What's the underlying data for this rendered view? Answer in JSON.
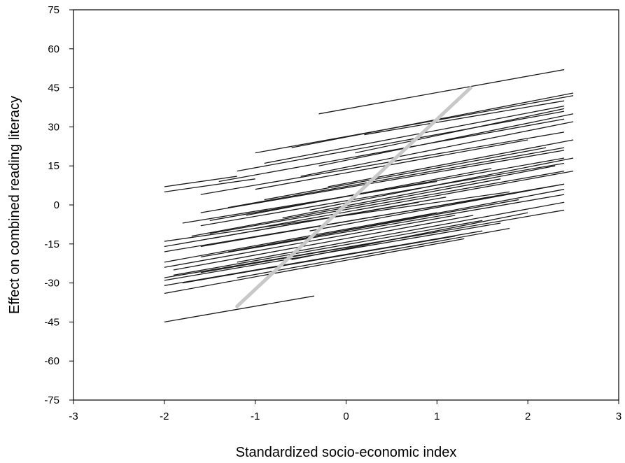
{
  "chart_data": {
    "type": "line",
    "title": "",
    "xlabel": "Standardized socio-economic index",
    "ylabel": "Effect on combined reading literacy",
    "xlim": [
      -3,
      3
    ],
    "ylim": [
      -75,
      75
    ],
    "x_ticks": [
      -3,
      -2,
      -1,
      0,
      1,
      2,
      3
    ],
    "y_ticks": [
      -75,
      -60,
      -45,
      -30,
      -15,
      0,
      15,
      30,
      45,
      60,
      75
    ],
    "x_tick_labels": [
      "-3",
      "-2",
      "-1",
      "0",
      "1",
      "2",
      "3"
    ],
    "y_tick_labels": [
      "-75",
      "-60",
      "-45",
      "-30",
      "-15",
      "0",
      "15",
      "30",
      "45",
      "60",
      "75"
    ],
    "grid": false,
    "series": [
      {
        "group": "school-level regression lines",
        "color": "#1a1a1a",
        "lines": [
          {
            "x": [
              -0.3,
              2.4
            ],
            "y": [
              35,
              52
            ]
          },
          {
            "x": [
              -2.0,
              -0.35
            ],
            "y": [
              -45,
              -35
            ]
          },
          {
            "x": [
              -2.0,
              -1.2
            ],
            "y": [
              7,
              11
            ]
          },
          {
            "x": [
              -2.0,
              -1.0
            ],
            "y": [
              5,
              10
            ]
          },
          {
            "x": [
              -2.0,
              1.8
            ],
            "y": [
              -14,
              5
            ]
          },
          {
            "x": [
              -2.0,
              1.5
            ],
            "y": [
              -31,
              -10
            ]
          },
          {
            "x": [
              -2.0,
              1.3
            ],
            "y": [
              -34,
              -13
            ]
          },
          {
            "x": [
              -2.0,
              1.7
            ],
            "y": [
              -29,
              -7
            ]
          },
          {
            "x": [
              -2.0,
              1.2
            ],
            "y": [
              -24,
              -4
            ]
          },
          {
            "x": [
              -2.0,
              1.6
            ],
            "y": [
              -18,
              3
            ]
          },
          {
            "x": [
              -2.0,
              1.0
            ],
            "y": [
              -22,
              -3
            ]
          },
          {
            "x": [
              -1.9,
              1.5
            ],
            "y": [
              -27,
              -6
            ]
          },
          {
            "x": [
              -1.6,
              2.4
            ],
            "y": [
              -26,
              -2
            ]
          },
          {
            "x": [
              -1.6,
              2.4
            ],
            "y": [
              -3,
              21
            ]
          },
          {
            "x": [
              -1.6,
              2.4
            ],
            "y": [
              -8,
              16
            ]
          },
          {
            "x": [
              -1.6,
              2.4
            ],
            "y": [
              4,
              28
            ]
          },
          {
            "x": [
              -1.6,
              2.4
            ],
            "y": [
              -16,
              8
            ]
          },
          {
            "x": [
              -1.6,
              2.4
            ],
            "y": [
              -20,
              4
            ]
          },
          {
            "x": [
              -1.5,
              2.4
            ],
            "y": [
              -11,
              13
            ]
          },
          {
            "x": [
              -1.5,
              2.4
            ],
            "y": [
              -6,
              18
            ]
          },
          {
            "x": [
              -1.4,
              2.4
            ],
            "y": [
              9,
              33
            ]
          },
          {
            "x": [
              -1.3,
              2.4
            ],
            "y": [
              -1,
              22
            ]
          },
          {
            "x": [
              -1.2,
              2.4
            ],
            "y": [
              13,
              36
            ]
          },
          {
            "x": [
              -1.2,
              2.4
            ],
            "y": [
              -22,
              1
            ]
          },
          {
            "x": [
              -1.0,
              2.5
            ],
            "y": [
              20,
              42
            ]
          },
          {
            "x": [
              -1.0,
              2.5
            ],
            "y": [
              -9,
              13
            ]
          },
          {
            "x": [
              -0.9,
              2.4
            ],
            "y": [
              16,
              38
            ]
          },
          {
            "x": [
              -0.8,
              2.4
            ],
            "y": [
              -15,
              6
            ]
          },
          {
            "x": [
              -0.6,
              2.5
            ],
            "y": [
              22,
              43
            ]
          },
          {
            "x": [
              -0.5,
              2.5
            ],
            "y": [
              11,
              32
            ]
          },
          {
            "x": [
              -0.4,
              2.5
            ],
            "y": [
              -2,
              18
            ]
          },
          {
            "x": [
              -0.3,
              2.5
            ],
            "y": [
              15,
              35
            ]
          },
          {
            "x": [
              -0.2,
              2.5
            ],
            "y": [
              7,
              25
            ]
          },
          {
            "x": [
              0.1,
              2.4
            ],
            "y": [
              20,
              37
            ]
          },
          {
            "x": [
              -1.1,
              1.6
            ],
            "y": [
              -4,
              14
            ]
          },
          {
            "x": [
              -1.7,
              1.7
            ],
            "y": [
              -12,
              10
            ]
          },
          {
            "x": [
              -1.9,
              1.4
            ],
            "y": [
              -25,
              -4
            ]
          },
          {
            "x": [
              -2.0,
              0.8
            ],
            "y": [
              -16,
              1
            ]
          },
          {
            "x": [
              -1.8,
              1.2
            ],
            "y": [
              -30,
              -12
            ]
          },
          {
            "x": [
              -1.2,
              1.8
            ],
            "y": [
              -28,
              -9
            ]
          },
          {
            "x": [
              -0.6,
              2.0
            ],
            "y": [
              -21,
              -3
            ]
          },
          {
            "x": [
              -0.9,
              2.2
            ],
            "y": [
              2,
              22
            ]
          },
          {
            "x": [
              -0.7,
              2.3
            ],
            "y": [
              -5,
              15
            ]
          },
          {
            "x": [
              -1.8,
              1.0
            ],
            "y": [
              -7,
              9
            ]
          },
          {
            "x": [
              -1.5,
              1.1
            ],
            "y": [
              -13,
              3
            ]
          },
          {
            "x": [
              -2.0,
              0.9
            ],
            "y": [
              -28,
              -11
            ]
          },
          {
            "x": [
              -1.0,
              2.0
            ],
            "y": [
              6,
              25
            ]
          },
          {
            "x": [
              0.2,
              2.4
            ],
            "y": [
              27,
              40
            ]
          },
          {
            "x": [
              -0.4,
              2.4
            ],
            "y": [
              -10,
              8
            ]
          },
          {
            "x": [
              -1.3,
              1.9
            ],
            "y": [
              -18,
              2
            ]
          }
        ]
      },
      {
        "group": "overall regression line",
        "color": "#c8c8c8",
        "lines": [
          {
            "x": [
              -1.2,
              1.37
            ],
            "y": [
              -39,
              45
            ]
          }
        ]
      }
    ]
  }
}
